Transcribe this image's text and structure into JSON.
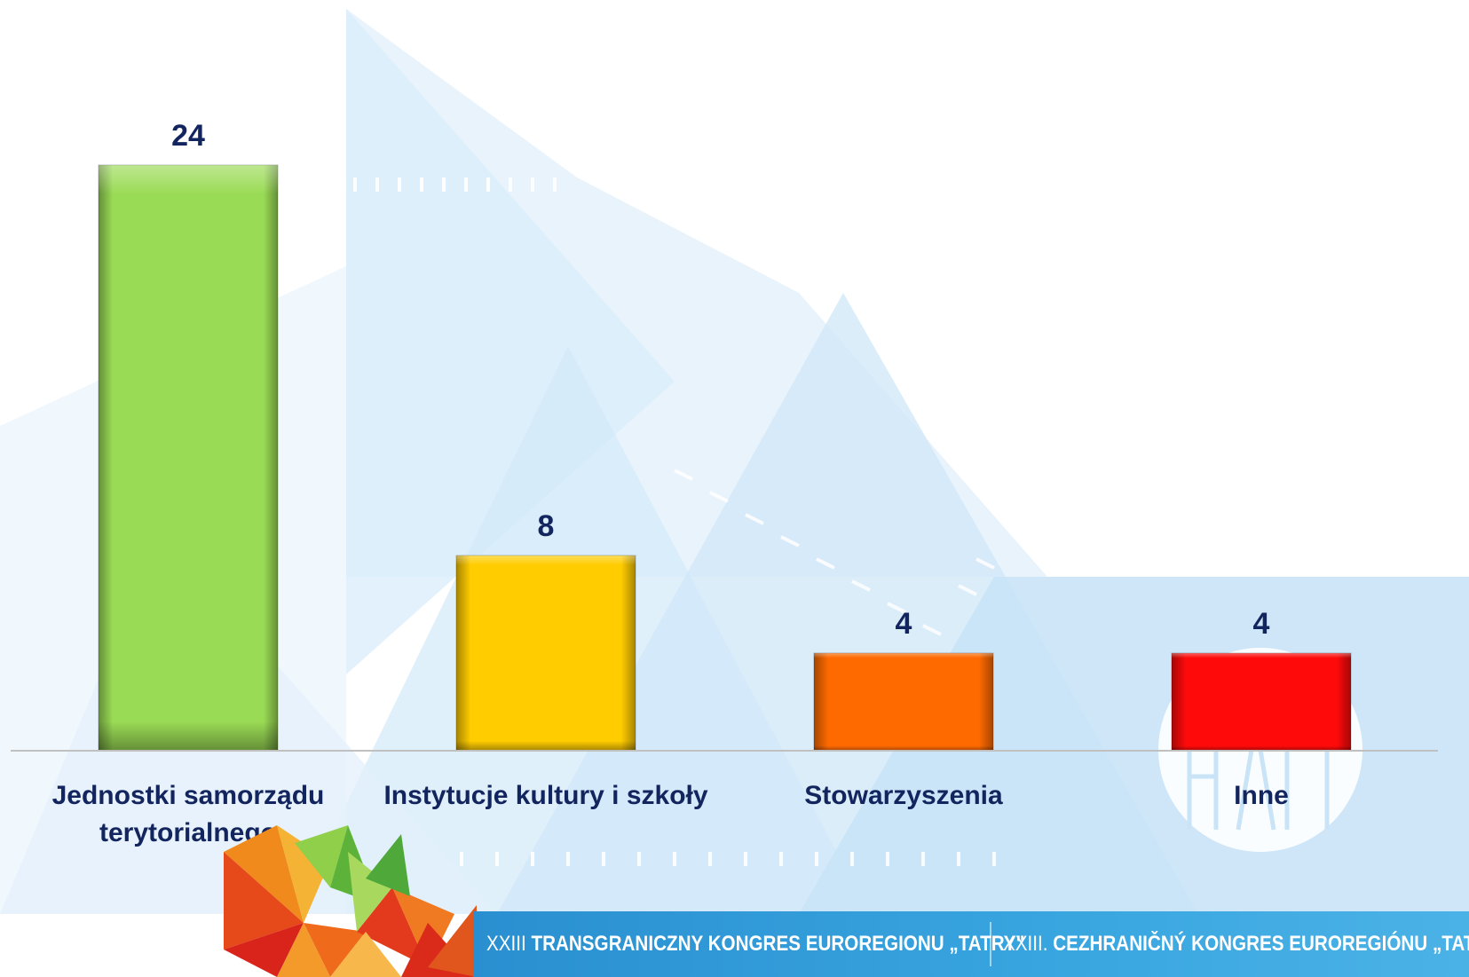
{
  "chart_data": {
    "type": "bar",
    "categories": [
      "Jednostki samorządu terytorialnego",
      "Instytucje kultury i szkoły",
      "Stowarzyszenia",
      "Inne"
    ],
    "category_lines": [
      [
        "Jednostki samorządu",
        "terytorialnego"
      ],
      [
        "Instytucje kultury i szkoły"
      ],
      [
        "Stowarzyszenia"
      ],
      [
        "Inne"
      ]
    ],
    "values": [
      24,
      8,
      4,
      4
    ],
    "value_labels": [
      "24",
      "8",
      "4",
      "4"
    ],
    "colors": [
      "#9adb55",
      "#ffcc00",
      "#ff6a00",
      "#ff0a0a"
    ],
    "title": "",
    "xlabel": "",
    "ylabel": "",
    "ylim": [
      0,
      24
    ],
    "grid": false,
    "legend": "none",
    "data_labels": true
  },
  "banner": {
    "left_prefix": "XXIII ",
    "left_bold": "TRANSGRANICZNY KONGRES EUROREGIONU „TATRY\"",
    "right_prefix": "XXIII. ",
    "right_bold": "CEZHRANIČNÝ KONGRES EUROREGIÓNU „TATRY\""
  },
  "colors": {
    "text": "#13255e",
    "banner": "#2f96d4",
    "background_shapes": "#c9e3f7"
  },
  "icons": {
    "logo": "euroregion-triangles-logo",
    "watermark": "tatry-watermark"
  }
}
